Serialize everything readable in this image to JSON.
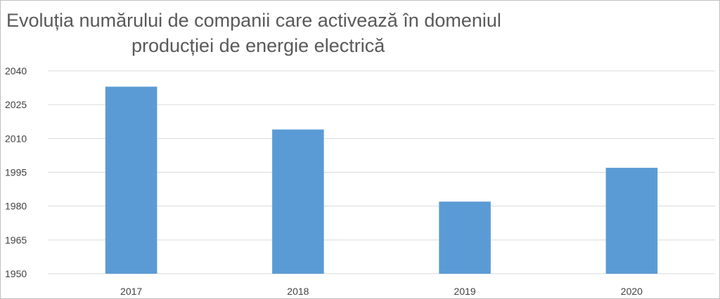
{
  "chart_data": {
    "type": "bar",
    "title_line1": "Evoluția numărului de companii care activează în domeniul",
    "title_line2": "producției de energie electrică",
    "categories": [
      "2017",
      "2018",
      "2019",
      "2020"
    ],
    "values": [
      2033,
      2014,
      1982,
      1997
    ],
    "ylim": [
      1950,
      2040
    ],
    "yticks": [
      "2040",
      "2025",
      "2010",
      "1995",
      "1980",
      "1965",
      "1950"
    ],
    "grid": true,
    "bar_color": "#5b9bd5",
    "grid_color": "#d9d9d9"
  }
}
